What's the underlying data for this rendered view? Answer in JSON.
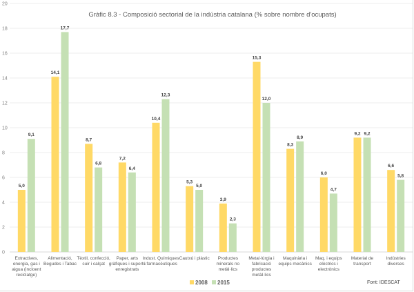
{
  "chart_data": {
    "type": "bar",
    "title": "Gràfic 8.3 - Composició sectorial de la indústria catalana (% sobre nombre d'ocupats)",
    "xlabel": "",
    "ylabel": "",
    "ylim": [
      0,
      20
    ],
    "yticks": [
      0,
      2,
      4,
      6,
      8,
      10,
      12,
      14,
      16,
      18,
      20
    ],
    "grid": true,
    "legend_position": "bottom-center",
    "source": "Font: IDESCAT",
    "categories": [
      [
        "Extractives,",
        "energia, gas i",
        "aigua (incloent",
        "reciclatge)"
      ],
      [
        "Alimentació,",
        "Begudes i Tabac"
      ],
      [
        "Tèxtil, confecció,",
        "cuir i calçat"
      ],
      [
        "Paper, arts",
        "gràfiques i suports",
        "enregistrats"
      ],
      [
        "Indust. Químiques",
        "i farmacèutiques"
      ],
      [
        "Cautxú i plàstic"
      ],
      [
        "Productes",
        "minerals no",
        "metàl·lics"
      ],
      [
        "Metal·lúrgia i",
        "fabricació",
        "productes",
        "metàl·lics"
      ],
      [
        "Maquinària i",
        "equips mecànics"
      ],
      [
        "Maq. i equips",
        "elèctrics i",
        "electrònics"
      ],
      [
        "Material de",
        "transport"
      ],
      [
        "Indústries",
        "diverses"
      ]
    ],
    "series": [
      {
        "name": "2008",
        "color": "#FFD966",
        "values": [
          5.0,
          14.1,
          8.7,
          7.2,
          10.4,
          5.3,
          3.9,
          15.3,
          8.3,
          6.0,
          9.2,
          6.6
        ],
        "labels": [
          "5,0",
          "14,1",
          "8,7",
          "7,2",
          "10,4",
          "5,3",
          "3,9",
          "15,3",
          "8,3",
          "6,0",
          "9,2",
          "6,6"
        ]
      },
      {
        "name": "2015",
        "color": "#C5E0B4",
        "values": [
          9.1,
          17.7,
          6.8,
          6.4,
          12.3,
          5.0,
          2.3,
          12.0,
          8.9,
          4.7,
          9.2,
          5.8
        ],
        "labels": [
          "9,1",
          "17,7",
          "6,8",
          "6,4",
          "12,3",
          "5,0",
          "2,3",
          "12,0",
          "8,9",
          "4,7",
          "9,2",
          "5,8"
        ]
      }
    ]
  }
}
